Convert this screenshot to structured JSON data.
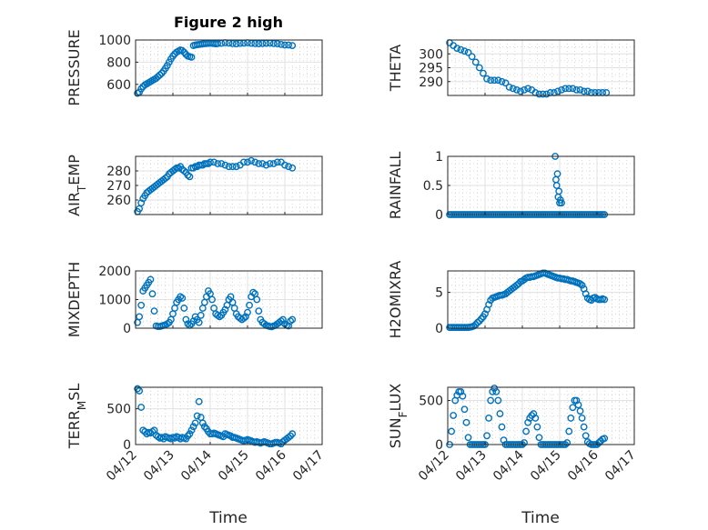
{
  "figure": {
    "title": "Figure 2 high",
    "xlabel": "Time",
    "marker_color": "#0072BD",
    "x_ticks": [
      "04/12",
      "04/13",
      "04/14",
      "04/15",
      "04/16",
      "04/17"
    ]
  },
  "chart_data": [
    {
      "type": "scatter",
      "ylabel": "PRESSURE",
      "ylim": [
        500,
        1000
      ],
      "yticks": [
        600,
        800,
        1000
      ],
      "grid": true,
      "x": [
        0.05,
        0.1,
        0.15,
        0.2,
        0.25,
        0.3,
        0.35,
        0.4,
        0.45,
        0.5,
        0.55,
        0.6,
        0.65,
        0.7,
        0.75,
        0.8,
        0.85,
        0.9,
        0.95,
        1.0,
        1.05,
        1.1,
        1.15,
        1.2,
        1.25,
        1.3,
        1.35,
        1.4,
        1.45,
        1.5,
        1.55,
        1.6,
        1.65,
        1.7,
        1.75,
        1.8,
        1.85,
        1.9,
        1.95,
        2.0,
        2.05,
        2.1,
        2.15,
        2.2,
        2.3,
        2.4,
        2.5,
        2.6,
        2.7,
        2.8,
        2.9,
        3.0,
        3.1,
        3.2,
        3.3,
        3.4,
        3.5,
        3.6,
        3.7,
        3.8,
        3.9,
        4.0,
        4.1,
        4.2
      ],
      "y": [
        520,
        530,
        560,
        580,
        595,
        605,
        615,
        625,
        635,
        645,
        655,
        670,
        685,
        700,
        720,
        745,
        770,
        800,
        830,
        855,
        875,
        890,
        900,
        910,
        905,
        890,
        870,
        855,
        850,
        845,
        950,
        955,
        958,
        960,
        962,
        965,
        967,
        968,
        970,
        972,
        970,
        968,
        965,
        968,
        970,
        975,
        972,
        968,
        965,
        970,
        972,
        975,
        970,
        968,
        966,
        968,
        970,
        972,
        968,
        966,
        960,
        955,
        955,
        950
      ]
    },
    {
      "type": "scatter",
      "ylabel": "THETA",
      "ylim": [
        285,
        305
      ],
      "yticks": [
        290,
        295,
        300
      ],
      "grid": true,
      "x": [
        0.05,
        0.15,
        0.25,
        0.35,
        0.45,
        0.55,
        0.65,
        0.75,
        0.85,
        0.95,
        1.05,
        1.15,
        1.25,
        1.35,
        1.45,
        1.55,
        1.65,
        1.75,
        1.85,
        1.95,
        2.05,
        2.15,
        2.25,
        2.35,
        2.45,
        2.55,
        2.65,
        2.75,
        2.85,
        2.95,
        3.05,
        3.15,
        3.25,
        3.35,
        3.45,
        3.55,
        3.65,
        3.75,
        3.85,
        3.95,
        4.05,
        4.15,
        4.25
      ],
      "y": [
        304,
        303,
        302,
        301.5,
        301,
        300.5,
        299,
        297,
        295,
        293,
        291,
        290.5,
        290.5,
        290.5,
        290,
        289.5,
        288,
        287.5,
        287,
        286.5,
        287,
        287.5,
        287,
        286,
        285.5,
        285.5,
        285.5,
        286,
        286,
        286.5,
        287,
        287.5,
        287.5,
        287.5,
        287,
        287,
        286.5,
        286.5,
        286,
        286,
        286,
        286,
        286
      ]
    },
    {
      "type": "scatter",
      "ylabel": "AIR_TEMP",
      "ylim": [
        250,
        290
      ],
      "yticks": [
        260,
        270,
        280
      ],
      "grid": true,
      "x": [
        0.05,
        0.1,
        0.15,
        0.2,
        0.25,
        0.3,
        0.35,
        0.4,
        0.45,
        0.5,
        0.55,
        0.6,
        0.65,
        0.7,
        0.75,
        0.8,
        0.85,
        0.9,
        0.95,
        1.0,
        1.05,
        1.1,
        1.15,
        1.2,
        1.25,
        1.3,
        1.35,
        1.4,
        1.45,
        1.5,
        1.55,
        1.6,
        1.65,
        1.7,
        1.75,
        1.8,
        1.85,
        1.9,
        1.95,
        2.0,
        2.1,
        2.2,
        2.3,
        2.4,
        2.5,
        2.6,
        2.7,
        2.8,
        2.9,
        3.0,
        3.1,
        3.2,
        3.3,
        3.4,
        3.5,
        3.6,
        3.7,
        3.8,
        3.9,
        4.0,
        4.1,
        4.2
      ],
      "y": [
        252,
        254,
        258,
        261,
        263,
        265,
        266,
        267,
        268,
        269,
        270,
        271,
        272,
        273,
        274,
        275,
        276,
        278,
        279,
        280,
        281,
        282,
        282,
        283,
        281,
        280,
        279,
        277,
        276,
        282,
        282,
        283,
        283,
        284,
        284,
        284,
        285,
        285,
        285,
        286,
        286,
        285,
        285,
        284,
        283,
        283,
        283,
        284,
        286,
        286,
        287,
        286,
        285,
        285,
        284,
        285,
        285,
        286,
        286,
        284,
        283,
        282
      ]
    },
    {
      "type": "scatter",
      "ylabel": "RAINFALL",
      "ylim": [
        0,
        1
      ],
      "yticks": [
        0,
        0.5,
        1
      ],
      "grid": true,
      "x": [
        0.05,
        0.1,
        0.15,
        0.2,
        0.25,
        0.3,
        0.35,
        0.4,
        0.45,
        0.5,
        0.55,
        0.6,
        0.65,
        0.7,
        0.75,
        0.8,
        0.85,
        0.9,
        0.95,
        1.0,
        1.05,
        1.1,
        1.15,
        1.2,
        1.25,
        1.3,
        1.35,
        1.4,
        1.45,
        1.5,
        1.55,
        1.6,
        1.65,
        1.7,
        1.75,
        1.8,
        1.85,
        1.9,
        1.95,
        2.0,
        2.05,
        2.1,
        2.15,
        2.2,
        2.25,
        2.3,
        2.35,
        2.4,
        2.45,
        2.5,
        2.55,
        2.6,
        2.65,
        2.7,
        2.75,
        2.8,
        2.85,
        2.9,
        2.95,
        3.0,
        3.05,
        3.1,
        3.15,
        3.2,
        3.25,
        3.3,
        3.35,
        3.4,
        3.45,
        3.5,
        3.55,
        3.6,
        3.65,
        3.7,
        3.75,
        3.8,
        3.85,
        3.9,
        3.95,
        4.0,
        4.05,
        4.1,
        4.15,
        4.2,
        2.88,
        2.9,
        2.92,
        2.94,
        2.96,
        2.98,
        3.0,
        3.02,
        3.05
      ],
      "y": [
        0,
        0,
        0,
        0,
        0,
        0,
        0,
        0,
        0,
        0,
        0,
        0,
        0,
        0,
        0,
        0,
        0,
        0,
        0,
        0,
        0,
        0,
        0,
        0,
        0,
        0,
        0,
        0,
        0,
        0,
        0,
        0,
        0,
        0,
        0,
        0,
        0,
        0,
        0,
        0,
        0,
        0,
        0,
        0,
        0,
        0,
        0,
        0,
        0,
        0,
        0,
        0,
        0,
        0,
        0,
        0,
        0,
        0,
        0,
        0,
        0,
        0,
        0,
        0,
        0,
        0,
        0,
        0,
        0,
        0,
        0,
        0,
        0,
        0,
        0,
        0,
        0,
        0,
        0,
        0,
        0,
        0,
        0,
        0,
        1.0,
        0.6,
        0.5,
        0.7,
        0.3,
        0.4,
        0.2,
        0.25,
        0.2
      ]
    },
    {
      "type": "scatter",
      "ylabel": "MIXDEPTH",
      "ylim": [
        0,
        2000
      ],
      "yticks": [
        0,
        1000,
        2000
      ],
      "grid": true,
      "x": [
        0.05,
        0.1,
        0.15,
        0.2,
        0.25,
        0.3,
        0.35,
        0.4,
        0.45,
        0.5,
        0.55,
        0.6,
        0.65,
        0.7,
        0.75,
        0.8,
        0.85,
        0.9,
        0.95,
        1.0,
        1.05,
        1.1,
        1.15,
        1.2,
        1.25,
        1.3,
        1.35,
        1.4,
        1.45,
        1.5,
        1.55,
        1.6,
        1.65,
        1.7,
        1.75,
        1.8,
        1.85,
        1.9,
        1.95,
        2.0,
        2.05,
        2.1,
        2.15,
        2.2,
        2.25,
        2.3,
        2.35,
        2.4,
        2.45,
        2.5,
        2.55,
        2.6,
        2.65,
        2.7,
        2.75,
        2.8,
        2.85,
        2.9,
        2.95,
        3.0,
        3.05,
        3.1,
        3.15,
        3.2,
        3.25,
        3.3,
        3.35,
        3.4,
        3.45,
        3.5,
        3.55,
        3.6,
        3.65,
        3.7,
        3.75,
        3.8,
        3.85,
        3.9,
        3.95,
        4.0,
        4.05,
        4.1,
        4.15,
        4.2
      ],
      "y": [
        200,
        400,
        800,
        1300,
        1400,
        1500,
        1600,
        1700,
        1200,
        600,
        80,
        60,
        60,
        80,
        100,
        120,
        150,
        200,
        300,
        500,
        700,
        900,
        1000,
        1100,
        1050,
        700,
        300,
        150,
        100,
        150,
        250,
        400,
        300,
        200,
        450,
        700,
        900,
        1100,
        1300,
        1200,
        1000,
        700,
        500,
        450,
        400,
        450,
        550,
        650,
        800,
        1000,
        1100,
        900,
        700,
        500,
        400,
        350,
        300,
        350,
        400,
        550,
        800,
        1100,
        1250,
        1200,
        1000,
        600,
        300,
        200,
        150,
        100,
        80,
        60,
        50,
        80,
        100,
        150,
        200,
        250,
        300,
        150,
        100,
        80,
        250,
        300
      ]
    },
    {
      "type": "scatter",
      "ylabel": "H2OMIXRA",
      "ylim": [
        0,
        8
      ],
      "yticks": [
        0,
        5
      ],
      "grid": true,
      "x": [
        0.05,
        0.1,
        0.15,
        0.2,
        0.25,
        0.3,
        0.35,
        0.4,
        0.45,
        0.5,
        0.55,
        0.6,
        0.65,
        0.7,
        0.75,
        0.8,
        0.85,
        0.9,
        0.95,
        1.0,
        1.05,
        1.1,
        1.15,
        1.2,
        1.25,
        1.3,
        1.35,
        1.4,
        1.45,
        1.5,
        1.55,
        1.6,
        1.65,
        1.7,
        1.75,
        1.8,
        1.85,
        1.9,
        1.95,
        2.0,
        2.05,
        2.1,
        2.15,
        2.2,
        2.25,
        2.3,
        2.35,
        2.4,
        2.45,
        2.5,
        2.55,
        2.6,
        2.65,
        2.7,
        2.75,
        2.8,
        2.85,
        2.9,
        2.95,
        3.0,
        3.05,
        3.1,
        3.15,
        3.2,
        3.25,
        3.3,
        3.35,
        3.4,
        3.45,
        3.5,
        3.55,
        3.6,
        3.65,
        3.7,
        3.75,
        3.8,
        3.85,
        3.9,
        3.95,
        4.0,
        4.05,
        4.1,
        4.15,
        4.2
      ],
      "y": [
        0.1,
        0.1,
        0.1,
        0.1,
        0.1,
        0.1,
        0.1,
        0.1,
        0.1,
        0.1,
        0.1,
        0.15,
        0.2,
        0.3,
        0.5,
        0.8,
        1.0,
        1.3,
        1.6,
        2.0,
        2.6,
        3.3,
        3.9,
        4.2,
        4.3,
        4.4,
        4.5,
        4.6,
        4.6,
        4.7,
        4.8,
        5.0,
        5.2,
        5.4,
        5.6,
        5.8,
        6.0,
        6.2,
        6.5,
        6.6,
        6.8,
        7.0,
        7.1,
        7.1,
        7.2,
        7.2,
        7.3,
        7.4,
        7.5,
        7.6,
        7.7,
        7.7,
        7.6,
        7.5,
        7.4,
        7.3,
        7.2,
        7.1,
        7.0,
        7.0,
        6.9,
        6.9,
        6.8,
        6.8,
        6.7,
        6.6,
        6.6,
        6.5,
        6.4,
        6.3,
        6.2,
        6.0,
        5.5,
        4.8,
        4.2,
        4.0,
        3.9,
        4.2,
        4.3,
        4.1,
        4.0,
        4.0,
        4.1,
        4.0
      ]
    },
    {
      "type": "scatter",
      "ylabel": "TERR_MSL",
      "ylim": [
        0,
        800
      ],
      "yticks": [
        0,
        500
      ],
      "grid": true,
      "x": [
        0.05,
        0.1,
        0.15,
        0.2,
        0.25,
        0.3,
        0.35,
        0.4,
        0.45,
        0.5,
        0.55,
        0.6,
        0.65,
        0.7,
        0.75,
        0.8,
        0.85,
        0.9,
        0.95,
        1.0,
        1.05,
        1.1,
        1.15,
        1.2,
        1.25,
        1.3,
        1.35,
        1.4,
        1.45,
        1.5,
        1.55,
        1.6,
        1.65,
        1.7,
        1.75,
        1.8,
        1.85,
        1.9,
        1.95,
        2.0,
        2.05,
        2.1,
        2.15,
        2.2,
        2.25,
        2.3,
        2.35,
        2.4,
        2.45,
        2.5,
        2.55,
        2.6,
        2.65,
        2.7,
        2.75,
        2.8,
        2.85,
        2.9,
        2.95,
        3.0,
        3.05,
        3.1,
        3.15,
        3.2,
        3.25,
        3.3,
        3.35,
        3.4,
        3.45,
        3.5,
        3.55,
        3.6,
        3.65,
        3.7,
        3.75,
        3.8,
        3.85,
        3.9,
        3.95,
        4.0,
        4.05,
        4.1,
        4.15,
        4.2
      ],
      "y": [
        780,
        750,
        520,
        200,
        180,
        150,
        170,
        160,
        180,
        200,
        130,
        110,
        90,
        100,
        80,
        110,
        100,
        90,
        80,
        100,
        90,
        110,
        100,
        80,
        100,
        90,
        80,
        120,
        150,
        200,
        250,
        300,
        400,
        600,
        380,
        300,
        250,
        220,
        180,
        150,
        150,
        160,
        150,
        140,
        130,
        120,
        110,
        150,
        140,
        130,
        120,
        100,
        100,
        90,
        80,
        70,
        60,
        50,
        60,
        70,
        60,
        50,
        40,
        30,
        40,
        30,
        20,
        30,
        40,
        30,
        20,
        10,
        10,
        20,
        30,
        30,
        20,
        10,
        40,
        60,
        80,
        100,
        120,
        150
      ]
    },
    {
      "type": "scatter",
      "ylabel": "SUN_FLUX",
      "ylim": [
        0,
        650
      ],
      "yticks": [
        0,
        500
      ],
      "grid": true,
      "x": [
        0.05,
        0.1,
        0.15,
        0.2,
        0.25,
        0.3,
        0.35,
        0.4,
        0.45,
        0.5,
        0.55,
        0.6,
        0.65,
        0.7,
        0.75,
        0.8,
        0.85,
        0.9,
        0.95,
        1.0,
        1.05,
        1.1,
        1.15,
        1.2,
        1.25,
        1.3,
        1.35,
        1.4,
        1.45,
        1.5,
        1.55,
        1.6,
        1.65,
        1.7,
        1.75,
        1.8,
        1.85,
        1.9,
        1.95,
        2.0,
        2.05,
        2.1,
        2.15,
        2.2,
        2.25,
        2.3,
        2.35,
        2.4,
        2.45,
        2.5,
        2.55,
        2.6,
        2.65,
        2.7,
        2.75,
        2.8,
        2.85,
        2.9,
        2.95,
        3.0,
        3.05,
        3.1,
        3.15,
        3.2,
        3.25,
        3.3,
        3.35,
        3.4,
        3.45,
        3.5,
        3.55,
        3.6,
        3.65,
        3.7,
        3.75,
        3.8,
        3.85,
        3.9,
        3.95,
        4.0,
        4.05,
        4.1,
        4.15,
        4.2
      ],
      "y": [
        0,
        150,
        330,
        500,
        560,
        600,
        600,
        550,
        400,
        250,
        80,
        0,
        0,
        0,
        0,
        0,
        0,
        0,
        0,
        0,
        100,
        300,
        500,
        600,
        640,
        600,
        500,
        350,
        200,
        50,
        0,
        0,
        0,
        0,
        0,
        0,
        0,
        0,
        0,
        0,
        20,
        150,
        250,
        300,
        330,
        350,
        300,
        200,
        80,
        0,
        0,
        0,
        0,
        0,
        0,
        0,
        0,
        0,
        0,
        0,
        0,
        0,
        0,
        20,
        150,
        300,
        420,
        500,
        500,
        450,
        380,
        300,
        200,
        100,
        30,
        10,
        0,
        0,
        0,
        0,
        20,
        40,
        60,
        70
      ]
    }
  ]
}
